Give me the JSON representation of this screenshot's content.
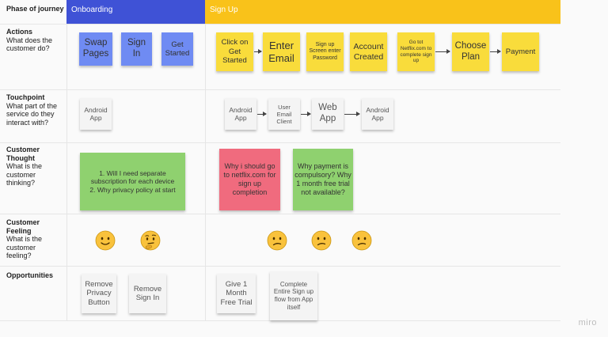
{
  "phase_label": "Phase of journey",
  "phases": {
    "onboarding": "Onboarding",
    "signup": "Sign Up"
  },
  "rows": {
    "actions": {
      "title": "Actions",
      "sub": "What does the customer do?"
    },
    "touchpoint": {
      "title": "Touchpoint",
      "sub": "What part of the service do they interact with?"
    },
    "thought": {
      "title": "Customer Thought",
      "sub": "What is the customer thinking?"
    },
    "feeling": {
      "title": "Customer Feeling",
      "sub": "What is the customer feeling?"
    },
    "opportunities": {
      "title": "Opportunities",
      "sub": ""
    }
  },
  "actions": {
    "swap_pages": "Swap Pages",
    "sign_in": "Sign In",
    "get_started": "Get Started",
    "click_get_started": "Click on Get Started",
    "enter_email": "Enter Email",
    "signup_screen": "Sign up Screen enter Password",
    "account_created": "Account Created",
    "goto_netflix": "Go tot Netflix.com to complete sign up",
    "choose_plan": "Choose Plan",
    "payment": "Payment"
  },
  "touchpoints": {
    "android_app_1": "Android App",
    "android_app_2": "Android App",
    "user_email_client": "User Email Client",
    "web_app": "Web App",
    "android_app_3": "Android App"
  },
  "thoughts": {
    "separate_subscription": "1. Will I need separate subscription for each device\n2. Why privacy policy at start",
    "why_netflix": "Why i should go to netflix.com for sign up completion",
    "why_payment": "Why payment is compulsory? Why 1 month free trial not available?"
  },
  "feelings": {
    "onboarding": [
      "happy",
      "thinking"
    ],
    "signup": [
      "confused",
      "confused",
      "confused"
    ]
  },
  "opportunities": {
    "remove_privacy": "Remove Privacy Button",
    "remove_sign_in": "Remove Sign In",
    "free_trial": "Give 1 Month Free Trial",
    "complete_in_app": "Complete Entire Sign up flow from App itself"
  },
  "colors": {
    "onboarding_header": "#3f52d6",
    "signup_header": "#f9c21a",
    "sticky_blue": "#6f8bf3",
    "sticky_yellow": "#f9dc3b",
    "sticky_green": "#8fd16f",
    "sticky_pink": "#f06b7e",
    "sticky_white": "#f4f4f4"
  },
  "watermark": "miro"
}
